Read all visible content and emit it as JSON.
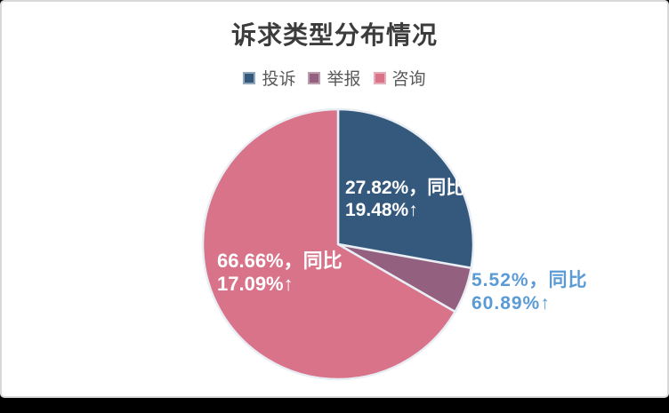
{
  "window": {
    "bottom_bar_color": "#000000",
    "card_border_color": "#D9D9D9",
    "background_color": "#FFFFFF"
  },
  "header": {
    "title": "诉求类型分布情况",
    "title_color": "#3C3C3C"
  },
  "legend": {
    "position": "top-center",
    "items": [
      {
        "label": "投诉",
        "color": "#35597D",
        "border": "#8FA6BC"
      },
      {
        "label": "举报",
        "color": "#93607F",
        "border": "#BF9BB0"
      },
      {
        "label": "咨询",
        "color": "#D8738A",
        "border": "#E8ABB8"
      }
    ],
    "text_color": "#595959"
  },
  "chart_data": {
    "type": "pie",
    "title": "诉求类型分布情况",
    "legend_position": "top",
    "direction": "clockwise",
    "start_angle_deg": 0,
    "slice_border_color": "#E9EEF4",
    "slices": [
      {
        "name": "投诉",
        "value": 27.82,
        "percent_label": "27.82%",
        "yoy_label": "同比19.48%↑",
        "color": "#35597D",
        "label_placement": "inside",
        "label_color": "#FFFFFF"
      },
      {
        "name": "举报",
        "value": 5.52,
        "percent_label": "5.52%",
        "yoy_label": "同比60.89%↑",
        "color": "#93607F",
        "label_placement": "outside-right",
        "label_color": "#5B9BD5"
      },
      {
        "name": "咨询",
        "value": 66.66,
        "percent_label": "66.66%",
        "yoy_label": "同比17.09%↑",
        "color": "#D8738A",
        "label_placement": "inside",
        "label_color": "#FFFFFF"
      }
    ]
  },
  "labels": {
    "complaint": {
      "line1": "27.82%，同比",
      "line2": "19.48%↑"
    },
    "report": {
      "line1": "5.52%，同比",
      "line2": "60.89%↑"
    },
    "consult": {
      "line1": "66.66%，同比",
      "line2": "17.09%↑"
    }
  }
}
